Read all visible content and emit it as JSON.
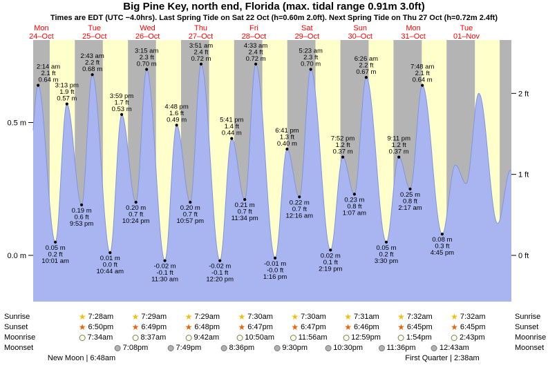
{
  "chart_data": {
    "type": "area",
    "title": "Big Pine Key, north end, Florida (max. tidal range 0.91m 3.0ft)",
    "subtitle": "Times are EDT (UTC −4.0hrs). Last Spring Tide on Sat 22 Oct (h=0.60m 2.0ft). Next Spring Tide on Thu 27 Oct (h=0.72m 2.4ft)",
    "ylabel_left_unit": "m",
    "ylabel_right_unit": "ft",
    "ylim_m": [
      -0.18,
      0.81
    ],
    "y_ticks_left": [
      {
        "value_m": 0.5,
        "label": "0.5 m"
      },
      {
        "value_m": 0.0,
        "label": "0.0 m"
      }
    ],
    "y_ticks_right": [
      {
        "value_ft": 2,
        "label": "2 ft"
      },
      {
        "value_ft": 1,
        "label": "1 ft"
      },
      {
        "value_ft": 0,
        "label": "0 ft"
      }
    ],
    "days": [
      {
        "dow": "Mon",
        "date": "24–Oct"
      },
      {
        "dow": "Tue",
        "date": "25–Oct"
      },
      {
        "dow": "Wed",
        "date": "26–Oct"
      },
      {
        "dow": "Thu",
        "date": "27–Oct"
      },
      {
        "dow": "Fri",
        "date": "28–Oct"
      },
      {
        "dow": "Sat",
        "date": "29–Oct"
      },
      {
        "dow": "Sun",
        "date": "30–Oct"
      },
      {
        "dow": "Mon",
        "date": "31–Oct"
      },
      {
        "dow": "Tue",
        "date": "01–Nov"
      }
    ],
    "day_bands": {
      "sunrise_h": [
        7.47,
        7.47,
        7.48,
        7.48,
        7.5,
        7.5,
        7.52,
        7.53,
        7.53
      ],
      "sunset_h": [
        18.83,
        18.82,
        18.8,
        18.78,
        18.78,
        18.77,
        18.75,
        18.75,
        18.73
      ]
    },
    "events": [
      {
        "day": 0,
        "hour": 2.233,
        "time": "2:14 am",
        "height_m": 0.64,
        "height_ft": 2.1,
        "type": "high",
        "lines": [
          "2:14 am",
          "2.1 ft",
          "0.64 m"
        ]
      },
      {
        "day": 0,
        "hour": 10.017,
        "time": "10:01 am",
        "height_m": 0.05,
        "height_ft": 0.2,
        "type": "low",
        "lines": [
          "0.05 m",
          "0.2 ft",
          "10:01 am"
        ]
      },
      {
        "day": 0,
        "hour": 15.217,
        "time": "3:13 pm",
        "height_m": 0.57,
        "height_ft": 1.9,
        "type": "high",
        "lines": [
          "3:13 pm",
          "1.9 ft",
          "0.57 m"
        ]
      },
      {
        "day": 0,
        "hour": 21.883,
        "time": "9:53 pm",
        "height_m": 0.19,
        "height_ft": 0.6,
        "type": "low",
        "lines": [
          "0.19 m",
          "0.6 ft",
          "9:53 pm"
        ]
      },
      {
        "day": 1,
        "hour": 2.717,
        "time": "2:43 am",
        "height_m": 0.68,
        "height_ft": 2.2,
        "type": "high",
        "lines": [
          "2:43 am",
          "2.2 ft",
          "0.68 m"
        ]
      },
      {
        "day": 1,
        "hour": 10.733,
        "time": "10:44 am",
        "height_m": 0.01,
        "height_ft": 0.0,
        "type": "low",
        "lines": [
          "0.01 m",
          "0.0 ft",
          "10:44 am"
        ]
      },
      {
        "day": 1,
        "hour": 15.983,
        "time": "3:59 pm",
        "height_m": 0.53,
        "height_ft": 1.7,
        "type": "high",
        "lines": [
          "3:59 pm",
          "1.7 ft",
          "0.53 m"
        ]
      },
      {
        "day": 1,
        "hour": 22.4,
        "time": "10:24 pm",
        "height_m": 0.2,
        "height_ft": 0.7,
        "type": "low",
        "lines": [
          "0.20 m",
          "0.7 ft",
          "10:24 pm"
        ]
      },
      {
        "day": 2,
        "hour": 3.25,
        "time": "3:15 am",
        "height_m": 0.7,
        "height_ft": 2.3,
        "type": "high",
        "lines": [
          "3:15 am",
          "2.3 ft",
          "0.70 m"
        ]
      },
      {
        "day": 2,
        "hour": 11.5,
        "time": "11:30 am",
        "height_m": -0.02,
        "height_ft": -0.1,
        "type": "low",
        "lines": [
          "-0.02 m",
          "-0.1 ft",
          "11:30 am"
        ]
      },
      {
        "day": 2,
        "hour": 16.8,
        "time": "4:48 pm",
        "height_m": 0.49,
        "height_ft": 1.6,
        "type": "high",
        "lines": [
          "4:48 pm",
          "1.6 ft",
          "0.49 m"
        ]
      },
      {
        "day": 2,
        "hour": 22.95,
        "time": "10:57 pm",
        "height_m": 0.2,
        "height_ft": 0.7,
        "type": "low",
        "lines": [
          "0.20 m",
          "0.7 ft",
          "10:57 pm"
        ]
      },
      {
        "day": 3,
        "hour": 3.85,
        "time": "3:51 am",
        "height_m": 0.72,
        "height_ft": 2.4,
        "type": "high",
        "lines": [
          "3:51 am",
          "2.4 ft",
          "0.72 m"
        ]
      },
      {
        "day": 3,
        "hour": 12.333,
        "time": "12:20 pm",
        "height_m": -0.02,
        "height_ft": -0.1,
        "type": "low",
        "lines": [
          "-0.02 m",
          "-0.1 ft",
          "12:20 pm"
        ]
      },
      {
        "day": 3,
        "hour": 17.683,
        "time": "5:41 pm",
        "height_m": 0.44,
        "height_ft": 1.4,
        "type": "high",
        "lines": [
          "5:41 pm",
          "1.4 ft",
          "0.44 m"
        ]
      },
      {
        "day": 3,
        "hour": 23.567,
        "time": "11:34 pm",
        "height_m": 0.21,
        "height_ft": 0.7,
        "type": "low",
        "lines": [
          "0.21 m",
          "0.7 ft",
          "11:34 pm"
        ]
      },
      {
        "day": 4,
        "hour": 4.55,
        "time": "4:33 am",
        "height_m": 0.72,
        "height_ft": 2.4,
        "type": "high",
        "lines": [
          "4:33 am",
          "2.4 ft",
          "0.72 m"
        ]
      },
      {
        "day": 4,
        "hour": 13.267,
        "time": "1:16 pm",
        "height_m": -0.01,
        "height_ft": -0.0,
        "type": "low",
        "lines": [
          "-0.01 m",
          "-0.0 ft",
          "1:16 pm"
        ]
      },
      {
        "day": 4,
        "hour": 18.683,
        "time": "6:41 pm",
        "height_m": 0.4,
        "height_ft": 1.3,
        "type": "high",
        "lines": [
          "6:41 pm",
          "1.3 ft",
          "0.40 m"
        ]
      },
      {
        "day": 5,
        "hour": 0.267,
        "time": "12:16 am",
        "height_m": 0.22,
        "height_ft": 0.7,
        "type": "low",
        "lines": [
          "0.22 m",
          "0.7 ft",
          "12:16 am"
        ]
      },
      {
        "day": 5,
        "hour": 5.383,
        "time": "5:23 am",
        "height_m": 0.7,
        "height_ft": 2.3,
        "type": "high",
        "lines": [
          "5:23 am",
          "2.3 ft",
          "0.70 m"
        ]
      },
      {
        "day": 5,
        "hour": 14.317,
        "time": "2:19 pm",
        "height_m": 0.02,
        "height_ft": 0.1,
        "type": "low",
        "lines": [
          "0.02 m",
          "0.1 ft",
          "2:19 pm"
        ]
      },
      {
        "day": 5,
        "hour": 19.867,
        "time": "7:52 pm",
        "height_m": 0.37,
        "height_ft": 1.2,
        "type": "high",
        "lines": [
          "7:52 pm",
          "1.2 ft",
          "0.37 m"
        ]
      },
      {
        "day": 6,
        "hour": 1.117,
        "time": "1:07 am",
        "height_m": 0.23,
        "height_ft": 0.8,
        "type": "low",
        "lines": [
          "0.23 m",
          "0.8 ft",
          "1:07 am"
        ]
      },
      {
        "day": 6,
        "hour": 6.433,
        "time": "6:26 am",
        "height_m": 0.67,
        "height_ft": 2.2,
        "type": "high",
        "lines": [
          "6:26 am",
          "2.2 ft",
          "0.67 m"
        ]
      },
      {
        "day": 6,
        "hour": 15.5,
        "time": "3:30 pm",
        "height_m": 0.05,
        "height_ft": 0.2,
        "type": "low",
        "lines": [
          "0.05 m",
          "0.2 ft",
          "3:30 pm"
        ]
      },
      {
        "day": 6,
        "hour": 21.183,
        "time": "9:11 pm",
        "height_m": 0.37,
        "height_ft": 1.2,
        "type": "high",
        "lines": [
          "9:11 pm",
          "1.2 ft",
          "0.37 m"
        ]
      },
      {
        "day": 7,
        "hour": 2.283,
        "time": "2:17 am",
        "height_m": 0.25,
        "height_ft": 0.8,
        "type": "low",
        "lines": [
          "0.25 m",
          "0.8 ft",
          "2:17 am"
        ]
      },
      {
        "day": 7,
        "hour": 7.8,
        "time": "7:48 am",
        "height_m": 0.64,
        "height_ft": 2.1,
        "type": "high",
        "lines": [
          "7:48 am",
          "2.1 ft",
          "0.64 m"
        ]
      },
      {
        "day": 7,
        "hour": 16.75,
        "time": "4:45 pm",
        "height_m": 0.08,
        "height_ft": 0.3,
        "type": "low",
        "lines": [
          "0.08 m",
          "0.3 ft",
          "4:45 pm"
        ]
      }
    ],
    "curve_support_points": [
      {
        "day": -1,
        "hour": 20.8,
        "height_m": 0.17
      },
      {
        "day": 7,
        "hour": 22.7,
        "height_m": 0.34
      },
      {
        "day": 8,
        "hour": 3.6,
        "height_m": 0.27
      },
      {
        "day": 8,
        "hour": 9.3,
        "height_m": 0.61
      },
      {
        "day": 8,
        "hour": 17.8,
        "height_m": 0.12
      },
      {
        "day": 8,
        "hour": 23.6,
        "height_m": 0.32
      },
      {
        "day": 9,
        "hour": 4.0,
        "height_m": 0.24
      }
    ]
  },
  "almanac": {
    "rows": [
      {
        "id": "sunrise",
        "label": "Sunrise",
        "icon": "sunrise-star-icon",
        "times": [
          "7:28am",
          "7:29am",
          "7:29am",
          "7:30am",
          "7:30am",
          "7:31am",
          "7:32am",
          "7:32am"
        ]
      },
      {
        "id": "sunset",
        "label": "Sunset",
        "icon": "sunset-star-icon",
        "times": [
          "6:50pm",
          "6:49pm",
          "6:48pm",
          "6:47pm",
          "6:47pm",
          "6:46pm",
          "6:45pm",
          "6:45pm"
        ]
      },
      {
        "id": "moonrise",
        "label": "Moonrise",
        "icon": "moonrise-circle-icon",
        "times": [
          "7:34am",
          "8:37am",
          "9:42am",
          "10:50am",
          "11:56am",
          "12:59pm",
          "1:54pm",
          "2:43pm"
        ]
      },
      {
        "id": "moonset",
        "label": "Moonset",
        "icon": "moonset-circle-icon",
        "times": [
          "7:08pm",
          "7:49pm",
          "8:36pm",
          "9:30pm",
          "10:30pm",
          "11:36pm",
          "12:43am"
        ]
      }
    ],
    "phases": [
      {
        "name": "New Moon",
        "time": "6:48am"
      },
      {
        "name": "First Quarter",
        "time": "2:38am"
      }
    ]
  },
  "colors": {
    "night_band": "#b4b4b4",
    "day_band": "#ffffcc",
    "tide_fill": "#a8b5f0",
    "tide_edge": "#8094e0",
    "label_red": "#ff0000",
    "text": "#000000",
    "sunrise_star": "#edc013",
    "sunset_star": "#e8650f",
    "moonrise_fill": "#ffffe0",
    "moonset_fill": "#b0b0b0",
    "moon_border": "#777777"
  }
}
